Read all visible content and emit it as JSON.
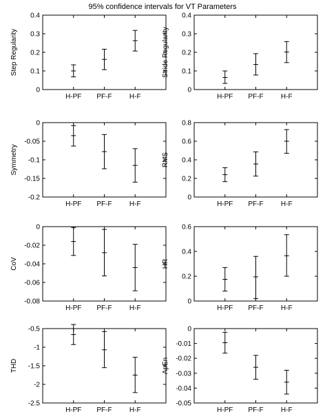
{
  "figure": {
    "title": "95% confidence intervals for VT Parameters"
  },
  "chart_data": [
    {
      "type": "errorbar",
      "ylabel": "Step Regularity",
      "categories": [
        "H-PF",
        "PF-F",
        "H-F"
      ],
      "ylim": [
        0,
        0.4
      ],
      "yticks": [
        0,
        0.1,
        0.2,
        0.3,
        0.4
      ],
      "yticklabels": [
        "0",
        "0.1",
        "0.2",
        "0.3",
        "0.4"
      ],
      "series": [
        {
          "center": [
            0.1,
            0.162,
            0.263
          ],
          "lower": [
            0.068,
            0.107,
            0.207
          ],
          "upper": [
            0.133,
            0.217,
            0.318
          ]
        }
      ]
    },
    {
      "type": "errorbar",
      "ylabel": "Stride Regularity",
      "categories": [
        "H-PF",
        "PF-F",
        "H-F"
      ],
      "ylim": [
        0,
        0.4
      ],
      "yticks": [
        0,
        0.1,
        0.2,
        0.3,
        0.4
      ],
      "yticklabels": [
        "0",
        "0.1",
        "0.2",
        "0.3",
        "0.4"
      ],
      "series": [
        {
          "center": [
            0.065,
            0.135,
            0.202
          ],
          "lower": [
            0.033,
            0.078,
            0.145
          ],
          "upper": [
            0.1,
            0.193,
            0.258
          ]
        }
      ]
    },
    {
      "type": "errorbar",
      "ylabel": "Symmetry",
      "categories": [
        "H-PF",
        "PF-F",
        "H-F"
      ],
      "ylim": [
        -0.2,
        0
      ],
      "yticks": [
        -0.2,
        -0.15,
        -0.1,
        -0.05,
        0
      ],
      "yticklabels": [
        "-0.2",
        "-0.15",
        "-0.1",
        "-0.05",
        "0"
      ],
      "series": [
        {
          "center": [
            -0.035,
            -0.078,
            -0.115
          ],
          "lower": [
            -0.063,
            -0.124,
            -0.16
          ],
          "upper": [
            -0.008,
            -0.032,
            -0.07
          ]
        }
      ]
    },
    {
      "type": "errorbar",
      "ylabel": "RMS",
      "categories": [
        "H-PF",
        "PF-F",
        "H-F"
      ],
      "ylim": [
        0,
        0.8
      ],
      "yticks": [
        0,
        0.2,
        0.4,
        0.6,
        0.8
      ],
      "yticklabels": [
        "0",
        "0.2",
        "0.4",
        "0.6",
        "0.8"
      ],
      "series": [
        {
          "center": [
            0.24,
            0.355,
            0.6
          ],
          "lower": [
            0.165,
            0.225,
            0.47
          ],
          "upper": [
            0.315,
            0.485,
            0.725
          ]
        }
      ]
    },
    {
      "type": "errorbar",
      "ylabel": "CoV",
      "categories": [
        "H-PF",
        "PF-F",
        "H-F"
      ],
      "ylim": [
        -0.08,
        0
      ],
      "yticks": [
        -0.08,
        -0.06,
        -0.04,
        -0.02,
        0
      ],
      "yticklabels": [
        "-0.08",
        "-0.06",
        "-0.04",
        "-0.02",
        "0"
      ],
      "series": [
        {
          "center": [
            -0.016,
            -0.028,
            -0.044
          ],
          "lower": [
            -0.031,
            -0.053,
            -0.069
          ],
          "upper": [
            -0.001,
            -0.003,
            -0.019
          ]
        }
      ]
    },
    {
      "type": "errorbar",
      "ylabel": "HR",
      "categories": [
        "H-PF",
        "PF-F",
        "H-F"
      ],
      "ylim": [
        0,
        0.6
      ],
      "yticks": [
        0,
        0.2,
        0.4,
        0.6
      ],
      "yticklabels": [
        "0",
        "0.2",
        "0.4",
        "0.6"
      ],
      "series": [
        {
          "center": [
            0.175,
            0.195,
            0.365
          ],
          "lower": [
            0.08,
            0.02,
            0.2
          ],
          "upper": [
            0.27,
            0.36,
            0.535
          ]
        }
      ]
    },
    {
      "type": "errorbar",
      "ylabel": "THD",
      "categories": [
        "H-PF",
        "PF-F",
        "H-F"
      ],
      "ylim": [
        -2.5,
        -0.5
      ],
      "yticks": [
        -2.5,
        -2,
        -1.5,
        -1,
        -0.5
      ],
      "yticklabels": [
        "-2.5",
        "-2",
        "-1.5",
        "-1",
        "-0.5"
      ],
      "series": [
        {
          "center": [
            -0.66,
            -1.07,
            -1.75
          ],
          "lower": [
            -0.93,
            -1.55,
            -2.22
          ],
          "upper": [
            -0.39,
            -0.58,
            -1.27
          ]
        }
      ]
    },
    {
      "type": "errorbar",
      "ylabel": "ApEn",
      "categories": [
        "H-PF",
        "PF-F",
        "H-F"
      ],
      "ylim": [
        -0.05,
        0
      ],
      "yticks": [
        -0.05,
        -0.04,
        -0.03,
        -0.02,
        -0.01,
        0
      ],
      "yticklabels": [
        "-0.05",
        "-0.04",
        "-0.03",
        "-0.02",
        "-0.01",
        "0"
      ],
      "series": [
        {
          "center": [
            -0.0095,
            -0.026,
            -0.036
          ],
          "lower": [
            -0.0165,
            -0.034,
            -0.044
          ],
          "upper": [
            -0.0025,
            -0.018,
            -0.028
          ]
        }
      ]
    }
  ]
}
